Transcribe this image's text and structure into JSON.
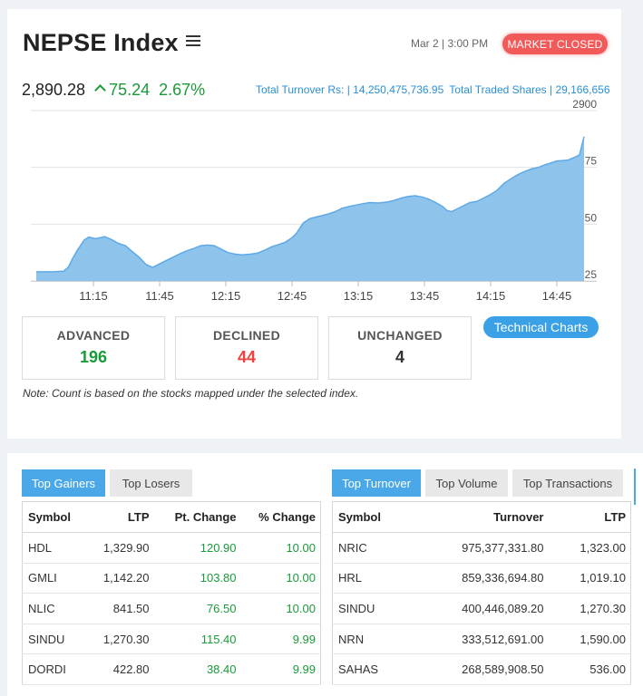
{
  "header": {
    "title": "NEPSE Index",
    "date": "Mar 2 | 3:00 PM",
    "market_status": "MARKET CLOSED"
  },
  "index": {
    "value": "2,890.28",
    "change": "75.24",
    "percent": "2.67%"
  },
  "turnover": {
    "total_turnover": "Total Turnover Rs: | 14,250,475,736.95",
    "total_shares": "Total Traded Shares | 29,166,656"
  },
  "colors": {
    "accent": "#3aa1e6",
    "up": "#1a9b3a",
    "down": "#f14040",
    "area_fill": "#8ec3ec",
    "area_line": "#5ea9e6"
  },
  "chart_data": {
    "type": "area",
    "x_ticks": [
      "11:15",
      "11:45",
      "12:15",
      "12:45",
      "13:15",
      "13:45",
      "14:15",
      "14:45"
    ],
    "y_ticks": [
      "2900",
      "2875",
      "2850",
      "2825"
    ],
    "ylim": [
      2825,
      2900
    ],
    "grid": true,
    "series": [
      {
        "values": [
          [
            0,
            2829.0
          ],
          [
            8,
            2829.1
          ],
          [
            12,
            2829.3
          ],
          [
            14,
            2831
          ],
          [
            16,
            2835
          ],
          [
            18,
            2838.5
          ],
          [
            19,
            2840
          ],
          [
            21,
            2843
          ],
          [
            23,
            2844.3
          ],
          [
            26,
            2843.6
          ],
          [
            30,
            2844.5
          ],
          [
            33,
            2843.2
          ],
          [
            36,
            2841.5
          ],
          [
            39,
            2840.5
          ],
          [
            42,
            2838
          ],
          [
            45,
            2835.5
          ],
          [
            48,
            2832.3
          ],
          [
            51,
            2831.0
          ],
          [
            54,
            2832.5
          ],
          [
            57,
            2834
          ],
          [
            60,
            2835.5
          ],
          [
            63,
            2837
          ],
          [
            66,
            2838.3
          ],
          [
            69,
            2839.3
          ],
          [
            72,
            2840.5
          ],
          [
            75,
            2840.8
          ],
          [
            78,
            2840.5
          ],
          [
            81,
            2839
          ],
          [
            84,
            2837.5
          ],
          [
            87,
            2836.8
          ],
          [
            90,
            2836.5
          ],
          [
            94,
            2836.8
          ],
          [
            97,
            2837.3
          ],
          [
            100,
            2838.5
          ],
          [
            103,
            2840
          ],
          [
            106,
            2841
          ],
          [
            109,
            2842
          ],
          [
            112,
            2844
          ],
          [
            114,
            2846
          ],
          [
            117,
            2850.5
          ],
          [
            120,
            2852.5
          ],
          [
            124,
            2853.5
          ],
          [
            128,
            2854.5
          ],
          [
            131,
            2855.5
          ],
          [
            134,
            2857
          ],
          [
            138,
            2858
          ],
          [
            142,
            2858.8
          ],
          [
            146,
            2859.5
          ],
          [
            150,
            2859.3
          ],
          [
            154,
            2859.8
          ],
          [
            157,
            2860.5
          ],
          [
            160,
            2861.5
          ],
          [
            163,
            2862.2
          ],
          [
            166,
            2862.5
          ],
          [
            169,
            2862
          ],
          [
            172,
            2861
          ],
          [
            175,
            2859.5
          ],
          [
            178,
            2857.8
          ],
          [
            180,
            2856
          ],
          [
            182,
            2855.5
          ],
          [
            184,
            2856.5
          ],
          [
            187,
            2858
          ],
          [
            190,
            2859.5
          ],
          [
            193,
            2860
          ],
          [
            196,
            2861.5
          ],
          [
            199,
            2863
          ],
          [
            202,
            2865
          ],
          [
            205,
            2868
          ],
          [
            208,
            2870
          ],
          [
            211,
            2871.8
          ],
          [
            214,
            2873.2
          ],
          [
            217,
            2874.3
          ],
          [
            220,
            2875
          ],
          [
            223,
            2876.2
          ],
          [
            225,
            2876.8
          ],
          [
            228,
            2877.8
          ],
          [
            231,
            2878
          ],
          [
            233,
            2878.2
          ],
          [
            236,
            2879.5
          ],
          [
            238,
            2880.5
          ],
          [
            240,
            2888.5
          ]
        ]
      }
    ]
  },
  "tech_charts_label": "Technical Charts",
  "stats": {
    "advanced_label": "ADVANCED",
    "advanced_value": "196",
    "declined_label": "DECLINED",
    "declined_value": "44",
    "unchanged_label": "UNCHANGED",
    "unchanged_value": "4"
  },
  "note": "Note: Count is based on the stocks mapped under the selected index.",
  "gainers_tabs": [
    "Top Gainers",
    "Top Losers"
  ],
  "turnover_tabs": [
    "Top Turnover",
    "Top Volume",
    "Top Transactions"
  ],
  "gainers_table": {
    "headers": [
      "Symbol",
      "LTP",
      "Pt. Change",
      "% Change"
    ],
    "rows": [
      [
        "HDL",
        "1,329.90",
        "120.90",
        "10.00"
      ],
      [
        "GMLI",
        "1,142.20",
        "103.80",
        "10.00"
      ],
      [
        "NLIC",
        "841.50",
        "76.50",
        "10.00"
      ],
      [
        "SINDU",
        "1,270.30",
        "115.40",
        "9.99"
      ],
      [
        "DORDI",
        "422.80",
        "38.40",
        "9.99"
      ]
    ]
  },
  "turnover_table": {
    "headers": [
      "Symbol",
      "Turnover",
      "LTP"
    ],
    "rows": [
      [
        "NRIC",
        "975,377,331.80",
        "1,323.00"
      ],
      [
        "HRL",
        "859,336,694.80",
        "1,019.10"
      ],
      [
        "SINDU",
        "400,446,089.20",
        "1,270.30"
      ],
      [
        "NRN",
        "333,512,691.00",
        "1,590.00"
      ],
      [
        "SAHAS",
        "268,589,908.50",
        "536.00"
      ]
    ]
  }
}
